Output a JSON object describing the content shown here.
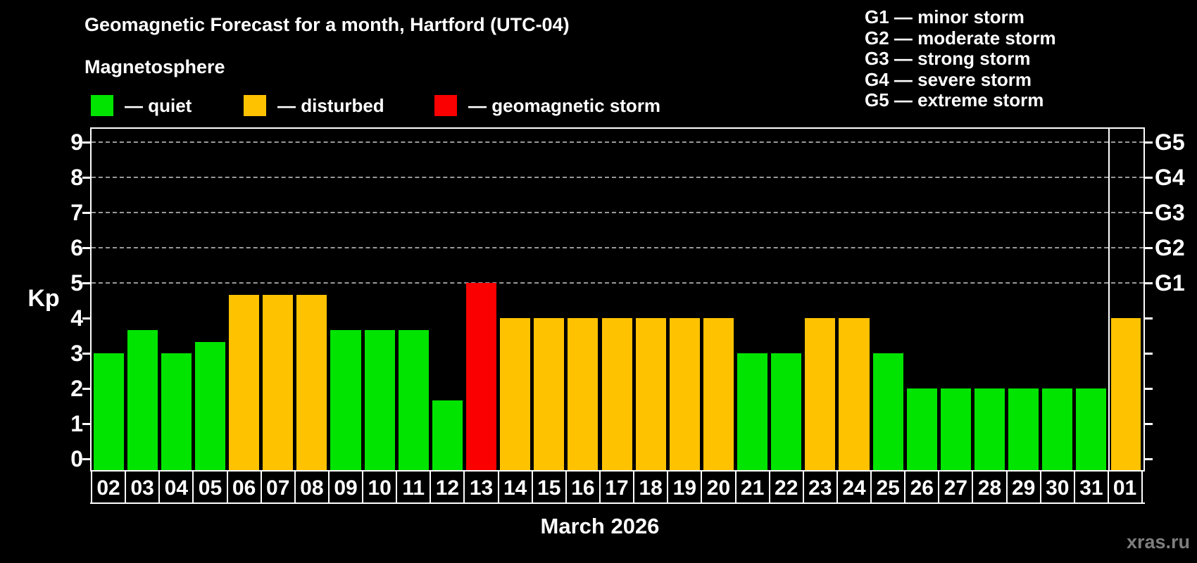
{
  "title": "Geomagnetic Forecast for a month, Hartford (UTC-04)",
  "subtitle": "Magnetosphere",
  "legend": {
    "items": [
      {
        "key": "quiet",
        "label": "— quiet",
        "color": "#00e400"
      },
      {
        "key": "disturbed",
        "label": "— disturbed",
        "color": "#ffc200"
      },
      {
        "key": "storm",
        "label": "— geomagnetic storm",
        "color": "#fa0000"
      }
    ]
  },
  "storm_scale_legend": {
    "items": [
      {
        "label": "G1 — minor storm"
      },
      {
        "label": "G2 — moderate storm"
      },
      {
        "label": "G3 — strong storm"
      },
      {
        "label": "G4 — severe storm"
      },
      {
        "label": "G5 — extreme storm"
      }
    ]
  },
  "watermark": "xras.ru",
  "chart_data": {
    "type": "bar",
    "title": "Geomagnetic Forecast for a month, Hartford (UTC-04)",
    "xlabel": "March 2026",
    "ylabel": "Kp",
    "ylim": [
      0,
      9
    ],
    "yticks": [
      0,
      1,
      2,
      3,
      4,
      5,
      6,
      7,
      8,
      9
    ],
    "grid": "dashed horizontal at Kp 5-9 only",
    "gridlines_at": [
      5,
      6,
      7,
      8,
      9
    ],
    "right_axis_labels": [
      {
        "kp": 5,
        "label": "G1"
      },
      {
        "kp": 6,
        "label": "G2"
      },
      {
        "kp": 7,
        "label": "G3"
      },
      {
        "kp": 8,
        "label": "G4"
      },
      {
        "kp": 9,
        "label": "G5"
      }
    ],
    "categories": [
      "02",
      "03",
      "04",
      "05",
      "06",
      "07",
      "08",
      "09",
      "10",
      "11",
      "12",
      "13",
      "14",
      "15",
      "16",
      "17",
      "18",
      "19",
      "20",
      "21",
      "22",
      "23",
      "24",
      "25",
      "26",
      "27",
      "28",
      "29",
      "30",
      "31",
      "01"
    ],
    "values": [
      3,
      3.67,
      3,
      3.33,
      4.67,
      4.67,
      4.67,
      3.67,
      3.67,
      3.67,
      1.67,
      5,
      4,
      4,
      4,
      4,
      4,
      4,
      4,
      3,
      3,
      4,
      4,
      3,
      2,
      2,
      2,
      2,
      2,
      2,
      4
    ],
    "statuses": [
      "quiet",
      "quiet",
      "quiet",
      "quiet",
      "disturbed",
      "disturbed",
      "disturbed",
      "quiet",
      "quiet",
      "quiet",
      "quiet",
      "storm",
      "disturbed",
      "disturbed",
      "disturbed",
      "disturbed",
      "disturbed",
      "disturbed",
      "disturbed",
      "quiet",
      "quiet",
      "disturbed",
      "disturbed",
      "quiet",
      "quiet",
      "quiet",
      "quiet",
      "quiet",
      "quiet",
      "quiet",
      "disturbed"
    ],
    "colors": {
      "quiet": "#00e400",
      "disturbed": "#ffc200",
      "storm": "#fa0000"
    },
    "month_separator_after_index": 29,
    "legend_position": "top-left",
    "month_label": "March 2026"
  }
}
